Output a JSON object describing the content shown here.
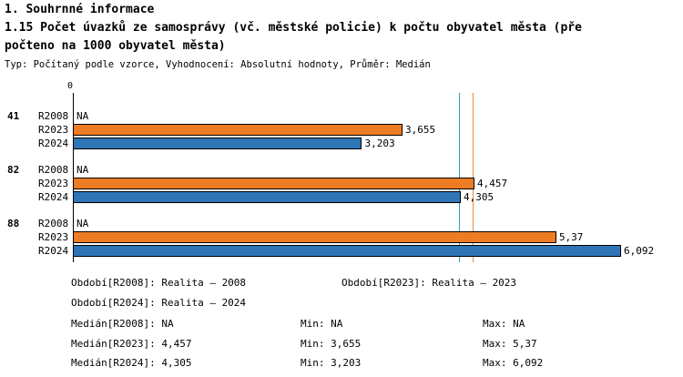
{
  "header": {
    "section": "1. Souhrnné informace",
    "title_line1": "1.15 Počet úvazků ze samosprávy (vč. městské policie) k počtu obyvatel města (pře",
    "title_line2": "počteno na 1000 obyvatel města)",
    "subtitle": "Typ: Počítaný podle vzorce, Vyhodnocení: Absolutní hodnoty, Průměr: Medián"
  },
  "chart_data": {
    "type": "bar",
    "orientation": "horizontal",
    "title": "1.15 Počet úvazků ze samosprávy (vč. městské policie) k počtu obyvatel města (přepočteno na 1000 obyvatel města)",
    "categories": [
      "41",
      "82",
      "88"
    ],
    "series": [
      {
        "name": "R2008",
        "values": [
          null,
          null,
          null
        ],
        "labels": [
          "NA",
          "NA",
          "NA"
        ],
        "color": null
      },
      {
        "name": "R2023",
        "values": [
          3.655,
          4.457,
          5.37
        ],
        "labels": [
          "3,655",
          "4,457",
          "5,37"
        ],
        "color": "#ED7C23"
      },
      {
        "name": "R2024",
        "values": [
          3.203,
          4.305,
          6.092
        ],
        "labels": [
          "3,203",
          "4,305",
          "6,092"
        ],
        "color": "#2E75B6"
      }
    ],
    "axis": {
      "origin_label": "0",
      "min": 0,
      "max_estimate": 6.8,
      "grid": false
    },
    "median_lines": [
      {
        "series": "R2024",
        "value": 4.305,
        "color": "#2FA0B4"
      },
      {
        "series": "R2023",
        "value": 4.457,
        "color": "#F0883C"
      }
    ]
  },
  "footer": {
    "obdobi_r2008": "Období[R2008]: Realita – 2008",
    "obdobi_r2023": "Období[R2023]: Realita – 2023",
    "obdobi_r2024": "Období[R2024]: Realita – 2024",
    "median_r2008": "Medián[R2008]: NA",
    "min_r2008": "Min: NA",
    "max_r2008": "Max: NA",
    "median_r2023": "Medián[R2023]: 4,457",
    "min_r2023": "Min: 3,655",
    "max_r2023": "Max: 5,37",
    "median_r2024": "Medián[R2024]: 4,305",
    "min_r2024": "Min: 3,203",
    "max_r2024": "Max: 6,092"
  }
}
